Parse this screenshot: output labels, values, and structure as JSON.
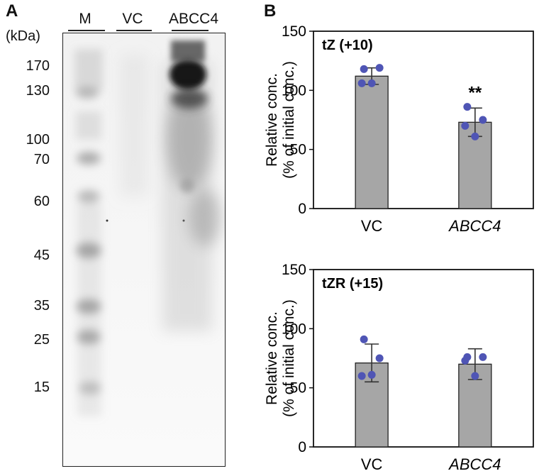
{
  "panel_a": {
    "letter": "A",
    "unit_label": "(kDa)",
    "lanes": [
      "M",
      "VC",
      "ABCC4"
    ],
    "markers": [
      "170",
      "130",
      "100",
      "70",
      "60",
      "45",
      "35",
      "25",
      "15"
    ]
  },
  "panel_b": {
    "letter": "B"
  },
  "chart_data": [
    {
      "type": "bar",
      "title": "tZ (+10)",
      "ylabel": "Relative conc. (% of initial conc.)",
      "ylabel_lines": [
        "Relative conc.",
        "(% of initial conc.)"
      ],
      "categories": [
        "VC",
        "ABCC4"
      ],
      "values": [
        112,
        73
      ],
      "errors": [
        7,
        12
      ],
      "points": [
        [
          118,
          119,
          106,
          106
        ],
        [
          86,
          75,
          70,
          61
        ]
      ],
      "annotations": [
        "",
        "**"
      ],
      "ylim": [
        0,
        150
      ],
      "yticks": [
        0,
        50,
        100,
        150
      ],
      "bar_color": "#a6a6a6",
      "point_color": "#4f55b5"
    },
    {
      "type": "bar",
      "title": "tZR (+15)",
      "ylabel": "Relative conc. (% of initial conc.)",
      "ylabel_lines": [
        "Relative conc.",
        "(% of initial conc.)"
      ],
      "categories": [
        "VC",
        "ABCC4"
      ],
      "values": [
        71,
        70
      ],
      "errors": [
        16,
        13
      ],
      "points": [
        [
          91,
          75,
          60,
          61
        ],
        [
          76,
          76,
          73,
          60
        ]
      ],
      "annotations": [
        "",
        ""
      ],
      "ylim": [
        0,
        150
      ],
      "yticks": [
        0,
        50,
        100,
        150
      ],
      "bar_color": "#a6a6a6",
      "point_color": "#4f55b5"
    }
  ]
}
